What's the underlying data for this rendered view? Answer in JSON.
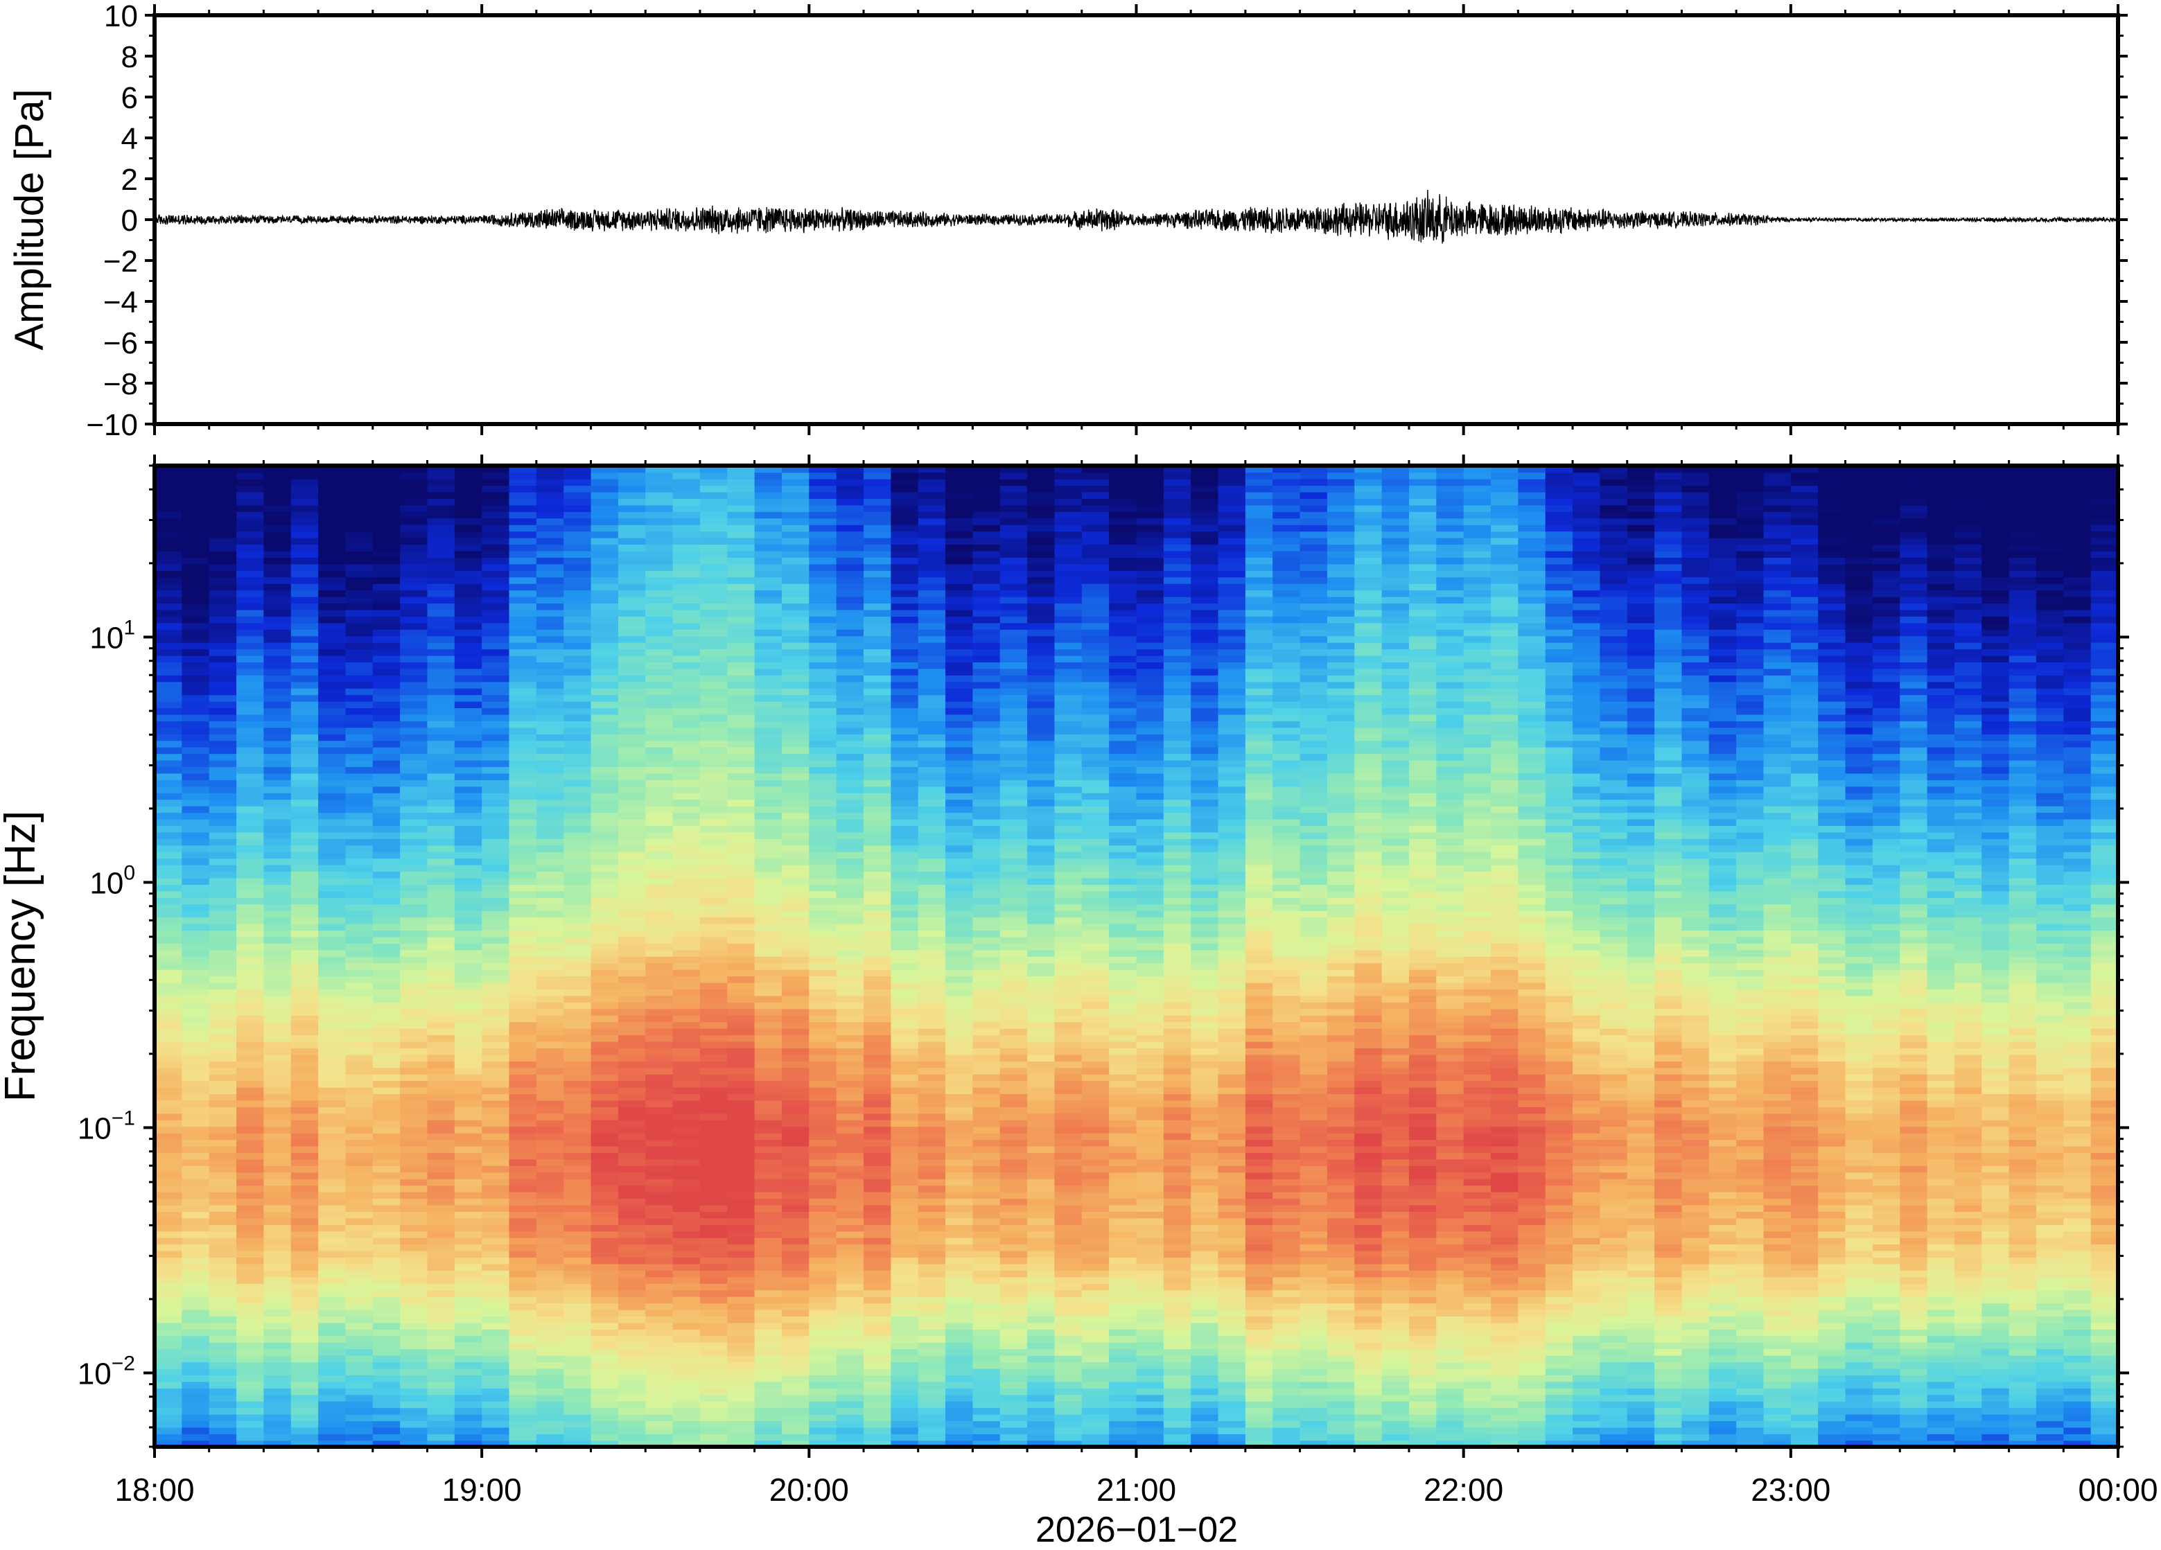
{
  "chart_data": [
    {
      "type": "line",
      "ylabel": "Amplitude [Pa]",
      "ylim": [
        -10,
        10
      ],
      "yticks": [
        "10",
        "8",
        "6",
        "4",
        "2",
        "0",
        "−2",
        "−4",
        "−6",
        "−8",
        "−10"
      ],
      "ytick_values": [
        10,
        8,
        6,
        4,
        2,
        0,
        -2,
        -4,
        -6,
        -8,
        -10
      ],
      "xlim_hours": [
        18,
        24
      ],
      "grid": false,
      "series": [
        {
          "values_envelope_pa": {
            "hours": [
              18.0,
              18.5,
              19.0,
              19.2,
              19.5,
              19.75,
              20.0,
              20.25,
              20.5,
              20.75,
              20.9,
              21.0,
              21.25,
              21.5,
              21.75,
              21.9,
              22.0,
              22.25,
              22.5,
              22.75,
              22.9,
              23.0,
              23.5,
              24.0
            ],
            "amplitude": [
              0.3,
              0.2,
              0.25,
              0.6,
              0.6,
              0.8,
              0.7,
              0.5,
              0.3,
              0.3,
              0.7,
              0.3,
              0.6,
              0.8,
              1.0,
              1.5,
              1.0,
              0.8,
              0.5,
              0.4,
              0.3,
              0.1,
              0.1,
              0.15
            ]
          }
        }
      ]
    },
    {
      "type": "heatmap",
      "ylabel": "Frequency [Hz]",
      "xlabel": "2026−01−02",
      "yscale": "log",
      "ylim_hz": [
        0.005,
        50
      ],
      "ytick_labels": [
        {
          "base": "10",
          "exp": "1",
          "value": 10
        },
        {
          "base": "10",
          "exp": "0",
          "value": 1
        },
        {
          "base": "10",
          "exp": "−1",
          "value": 0.1
        },
        {
          "base": "10",
          "exp": "−2",
          "value": 0.01
        }
      ],
      "xticks": [
        "18:00",
        "19:00",
        "20:00",
        "21:00",
        "22:00",
        "23:00",
        "00:00"
      ],
      "colormap": "jet",
      "colormap_stops": [
        "#0a0a6e",
        "#0d2ad8",
        "#1e8ff0",
        "#4fd1e8",
        "#8fe8b8",
        "#d8f59a",
        "#f5e08a",
        "#f5b060",
        "#ef7a50",
        "#e04848"
      ],
      "peak_frequency_band_hz": [
        0.03,
        0.3
      ],
      "active_periods_hours": [
        [
          19.1,
          20.3
        ],
        [
          21.2,
          22.5
        ]
      ]
    }
  ]
}
